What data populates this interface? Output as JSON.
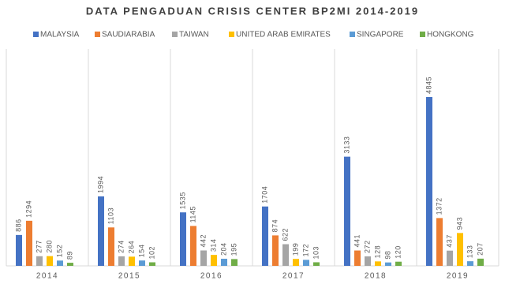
{
  "chart_data": {
    "type": "bar",
    "title": "DATA PENGADUAN CRISIS CENTER BP2MI 2014-2019",
    "categories": [
      "2014",
      "2015",
      "2016",
      "2017",
      "2018",
      "2019"
    ],
    "series": [
      {
        "name": "MALAYSIA",
        "color": "#4472c4",
        "values": [
          886,
          1994,
          1535,
          1704,
          3133,
          4845
        ]
      },
      {
        "name": "SAUDIARABIA",
        "color": "#ed7d31",
        "values": [
          1294,
          1103,
          1145,
          874,
          441,
          1372
        ]
      },
      {
        "name": "TAIWAN",
        "color": "#a5a5a5",
        "values": [
          277,
          274,
          442,
          622,
          272,
          437
        ]
      },
      {
        "name": "UNITED ARAB EMIRATES",
        "color": "#ffc000",
        "values": [
          280,
          264,
          314,
          199,
          128,
          943
        ]
      },
      {
        "name": "SINGAPORE",
        "color": "#5b9bd5",
        "values": [
          152,
          154,
          204,
          172,
          98,
          133
        ]
      },
      {
        "name": "HONGKONG",
        "color": "#70ad47",
        "values": [
          89,
          102,
          195,
          103,
          120,
          207
        ]
      }
    ]
  }
}
